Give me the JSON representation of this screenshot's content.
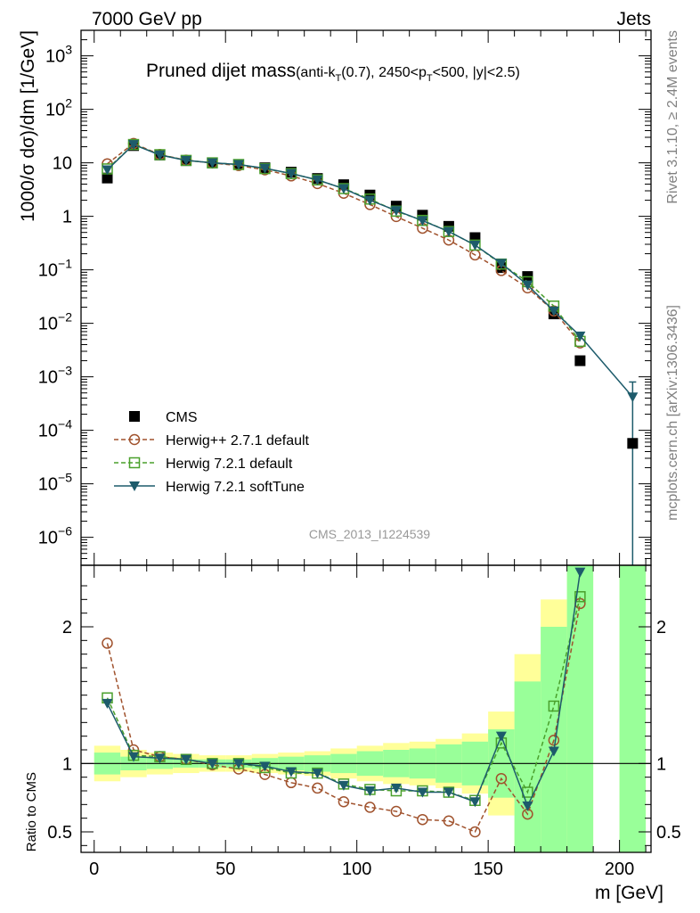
{
  "header": {
    "left": "7000 GeV pp",
    "right": "Jets",
    "title_main": "Pruned dijet mass",
    "title_detail": "(anti-k",
    "title_sub_T1": "T",
    "title_detail2": "(0.7), 2450<p",
    "title_sub_T2": "T",
    "title_detail3": "<500, |y|<2.5)"
  },
  "side_text": {
    "rivet": "Rivet 3.1.10, ≥ 2.4M events",
    "mcplots": "mcplots.cern.ch [arXiv:1306.3436]"
  },
  "watermark": "CMS_2013_I1224539",
  "axes": {
    "ylabel_top": "1000/σ dσ)/dm [1/GeV]",
    "ylabel_bottom": "Ratio to CMS",
    "xlabel": "m [GeV]"
  },
  "colors": {
    "data": "#000000",
    "herwigpp": "#a0522d",
    "herwig72": "#4aa02c",
    "softtune": "#1d5b6b",
    "band_inner": "#99ff99",
    "band_outer": "#ffff99"
  },
  "chart_data": [
    {
      "type": "scatter",
      "xlabel": "m [GeV]",
      "ylabel": "1000/σ dσ)/dm [1/GeV]",
      "xlim": [
        -5,
        212
      ],
      "ylim": [
        3e-07,
        3000
      ],
      "y_scale": "log",
      "yticks": [
        {
          "v": 1e-06,
          "b": "10",
          "e": "−6"
        },
        {
          "v": 1e-05,
          "b": "10",
          "e": "−5"
        },
        {
          "v": 0.0001,
          "b": "10",
          "e": "−4"
        },
        {
          "v": 0.001,
          "b": "10",
          "e": "−3"
        },
        {
          "v": 0.01,
          "b": "10",
          "e": "−2"
        },
        {
          "v": 0.1,
          "b": "10",
          "e": "−1"
        },
        {
          "v": 1,
          "b": "1",
          "e": ""
        },
        {
          "v": 10,
          "b": "10",
          "e": ""
        },
        {
          "v": 100,
          "b": "10",
          "e": "2"
        },
        {
          "v": 1000,
          "b": "10",
          "e": "3"
        }
      ],
      "legend": "bottom-left",
      "series": [
        {
          "name": "CMS",
          "style": "data",
          "x": [
            5,
            15,
            25,
            35,
            45,
            55,
            65,
            75,
            85,
            95,
            105,
            115,
            125,
            135,
            145,
            155,
            165,
            175,
            185,
            205
          ],
          "y": [
            5.2,
            21,
            14,
            11,
            10,
            9.3,
            8.1,
            6.7,
            5.1,
            3.9,
            2.5,
            1.55,
            1.05,
            0.65,
            0.4,
            0.11,
            0.075,
            0.015,
            0.002,
            5.7e-05
          ]
        },
        {
          "name": "Herwig++ 2.7.1 default",
          "style": "herwigpp",
          "x": [
            5,
            15,
            25,
            35,
            45,
            55,
            65,
            75,
            85,
            95,
            105,
            115,
            125,
            135,
            145,
            155,
            165,
            175,
            185
          ],
          "y": [
            9.6,
            23,
            14.3,
            11.2,
            9.9,
            8.9,
            7.4,
            5.7,
            4.1,
            2.7,
            1.66,
            0.99,
            0.6,
            0.36,
            0.19,
            0.097,
            0.046,
            0.017,
            0.0043
          ]
        },
        {
          "name": "Herwig 7.2.1 default",
          "style": "herwig72",
          "x": [
            5,
            15,
            25,
            35,
            45,
            55,
            65,
            75,
            85,
            95,
            105,
            115,
            125,
            135,
            145,
            155,
            165,
            175,
            185
          ],
          "y": [
            7.7,
            22,
            14.2,
            11.1,
            10,
            9.3,
            7.8,
            6.3,
            4.8,
            3.3,
            2.1,
            1.25,
            0.84,
            0.52,
            0.29,
            0.128,
            0.06,
            0.021,
            0.0046
          ]
        },
        {
          "name": "Herwig 7.2.1 softTune",
          "style": "softtune",
          "x": [
            5,
            15,
            25,
            35,
            45,
            55,
            65,
            75,
            85,
            95,
            105,
            115,
            125,
            135,
            145,
            155,
            165,
            175,
            185,
            205
          ],
          "y": [
            7.4,
            22,
            14,
            11.1,
            10,
            9.3,
            7.9,
            6.3,
            4.8,
            3.3,
            2.0,
            1.28,
            0.83,
            0.52,
            0.29,
            0.132,
            0.052,
            0.017,
            0.0058,
            0.00042
          ]
        }
      ]
    },
    {
      "type": "scatter",
      "xlabel": "m [GeV]",
      "ylabel": "Ratio to CMS",
      "xlim": [
        -5,
        212
      ],
      "ylim": [
        0.35,
        2.45
      ],
      "yticks": [
        0.5,
        1,
        2
      ],
      "xticks": [
        0,
        50,
        100,
        150,
        200
      ],
      "reference_line": 1,
      "series": [
        {
          "name": "Herwig++ 2.7.1 default",
          "style": "herwigpp",
          "x": [
            5,
            15,
            25,
            35,
            45,
            55,
            65,
            75,
            85,
            95,
            105,
            115,
            125,
            135,
            145,
            155,
            165,
            175,
            185
          ],
          "y": [
            1.88,
            1.1,
            1.05,
            1.03,
            0.99,
            0.96,
            0.92,
            0.86,
            0.82,
            0.72,
            0.68,
            0.65,
            0.59,
            0.58,
            0.5,
            0.89,
            0.63,
            1.17,
            2.17
          ]
        },
        {
          "name": "Herwig 7.2.1 default",
          "style": "herwig72",
          "x": [
            5,
            15,
            25,
            35,
            45,
            55,
            65,
            75,
            85,
            95,
            105,
            115,
            125,
            135,
            145,
            155,
            165,
            175,
            185
          ],
          "y": [
            1.48,
            1.06,
            1.05,
            1.03,
            1.0,
            1.0,
            0.97,
            0.93,
            0.93,
            0.85,
            0.81,
            0.8,
            0.8,
            0.79,
            0.73,
            1.15,
            0.79,
            1.42,
            2.22
          ]
        },
        {
          "name": "Herwig 7.2.1 softTune",
          "style": "softtune",
          "x": [
            5,
            15,
            25,
            35,
            45,
            55,
            65,
            75,
            85,
            95,
            105,
            115,
            125,
            135,
            145,
            155,
            165,
            175,
            185
          ],
          "y": [
            1.44,
            1.05,
            1.04,
            1.03,
            1.0,
            1.0,
            0.98,
            0.94,
            0.93,
            0.84,
            0.8,
            0.82,
            0.79,
            0.79,
            0.72,
            1.2,
            0.69,
            1.09,
            2.4
          ]
        }
      ],
      "uncertainty_bands": {
        "x_edges": [
          0,
          10,
          20,
          30,
          40,
          50,
          60,
          70,
          80,
          90,
          100,
          110,
          120,
          130,
          140,
          150,
          160,
          170,
          180,
          190,
          200,
          210
        ],
        "inner_lo": [
          0.92,
          0.95,
          0.96,
          0.97,
          0.97,
          0.97,
          0.96,
          0.95,
          0.94,
          0.93,
          0.91,
          0.9,
          0.89,
          0.86,
          0.84,
          0.75,
          0.35,
          0.35,
          0.35,
          null,
          0.35
        ],
        "inner_hi": [
          1.08,
          1.05,
          1.04,
          1.03,
          1.03,
          1.03,
          1.04,
          1.05,
          1.06,
          1.07,
          1.09,
          1.1,
          1.11,
          1.14,
          1.16,
          1.25,
          1.6,
          2.0,
          2.45,
          null,
          2.45
        ],
        "outer_lo": [
          0.87,
          0.9,
          0.92,
          0.93,
          0.94,
          0.94,
          0.93,
          0.92,
          0.91,
          0.89,
          0.87,
          0.85,
          0.84,
          0.82,
          0.78,
          0.62,
          0.35,
          0.43,
          0.35,
          null,
          0.35
        ],
        "outer_hi": [
          1.13,
          1.1,
          1.08,
          1.07,
          1.06,
          1.06,
          1.07,
          1.08,
          1.09,
          1.11,
          1.13,
          1.15,
          1.16,
          1.18,
          1.22,
          1.38,
          1.8,
          2.2,
          2.45,
          null,
          2.45
        ]
      }
    }
  ]
}
